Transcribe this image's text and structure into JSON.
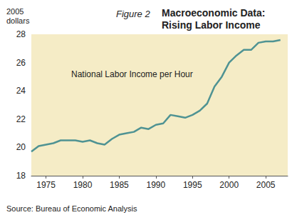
{
  "chart_data": {
    "type": "line",
    "title": "Macroeconomic Data: Rising Labor Income",
    "subtitle": "Figure 2",
    "ylabel": "2005 dollars",
    "annotations": [
      "National Labor Income per Hour"
    ],
    "source": "Source: Bureau of Economic Analysis",
    "x": [
      1973,
      1974,
      1975,
      1976,
      1977,
      1978,
      1979,
      1980,
      1981,
      1982,
      1983,
      1984,
      1985,
      1986,
      1987,
      1988,
      1989,
      1990,
      1991,
      1992,
      1993,
      1994,
      1995,
      1996,
      1997,
      1998,
      1999,
      2000,
      2001,
      2002,
      2003,
      2004,
      2005,
      2006,
      2007
    ],
    "values": [
      19.7,
      20.1,
      20.2,
      20.3,
      20.5,
      20.5,
      20.5,
      20.4,
      20.5,
      20.3,
      20.2,
      20.6,
      20.9,
      21.0,
      21.1,
      21.4,
      21.3,
      21.6,
      21.7,
      22.3,
      22.2,
      22.1,
      22.3,
      22.6,
      23.1,
      24.3,
      25.0,
      26.0,
      26.5,
      26.9,
      26.9,
      27.4,
      27.5,
      27.5,
      27.6
    ],
    "color": "#4f9393",
    "xlim": [
      1973,
      2008
    ],
    "xticks": [
      1975,
      1980,
      1985,
      1990,
      1995,
      2000,
      2005
    ],
    "ylim": [
      18,
      28
    ],
    "yticks": [
      18,
      20,
      22,
      24,
      26,
      28
    ],
    "grid": false
  }
}
